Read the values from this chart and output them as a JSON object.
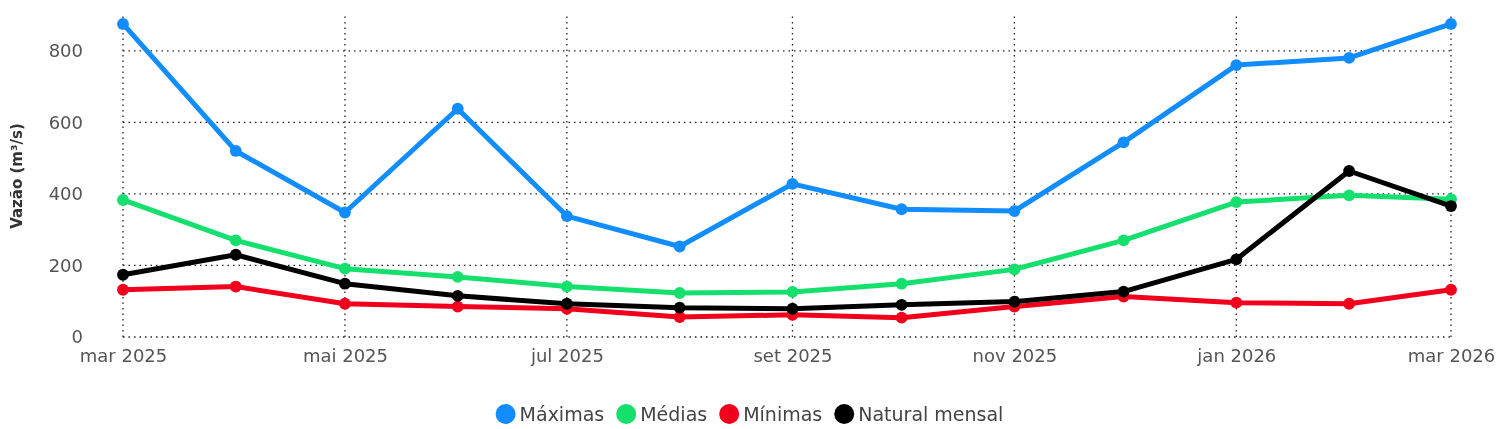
{
  "chart_data": {
    "type": "line",
    "ylabel": "Vazão (m³/s)",
    "x": [
      "2025-03",
      "2025-04",
      "2025-05",
      "2025-06",
      "2025-07",
      "2025-08",
      "2025-09",
      "2025-10",
      "2025-11",
      "2025-12",
      "2026-01",
      "2026-02",
      "2026-03"
    ],
    "xlim": [
      "2025-03",
      "2026-03"
    ],
    "xticks": [
      {
        "value": "2025-03",
        "label": "mar 2025"
      },
      {
        "value": "2025-05",
        "label": "mai 2025"
      },
      {
        "value": "2025-07",
        "label": "jul 2025"
      },
      {
        "value": "2025-09",
        "label": "set 2025"
      },
      {
        "value": "2025-11",
        "label": "nov 2025"
      },
      {
        "value": "2026-01",
        "label": "jan 2026"
      },
      {
        "value": "2026-03",
        "label": "mar 2026"
      }
    ],
    "ylim": [
      0,
      900
    ],
    "yticks": [
      0,
      200,
      400,
      600,
      800
    ],
    "grid": true,
    "legend": "bottom",
    "marker": "circle",
    "line_style": "solid",
    "series": [
      {
        "name": "Máximas",
        "color": "#118dff",
        "values": [
          875,
          520,
          348,
          638,
          338,
          253,
          428,
          357,
          352,
          544,
          760,
          780,
          875
        ]
      },
      {
        "name": "Médias",
        "color": "#15e06e",
        "values": [
          383,
          270,
          191,
          168,
          141,
          123,
          126,
          149,
          189,
          270,
          377,
          396,
          385
        ]
      },
      {
        "name": "Mínimas",
        "color": "#f0001c",
        "values": [
          132,
          141,
          93,
          85,
          79,
          56,
          62,
          54,
          85,
          113,
          96,
          93,
          132
        ]
      },
      {
        "name": "Natural mensal",
        "color": "#000000",
        "values": [
          174,
          230,
          149,
          115,
          93,
          82,
          79,
          90,
          99,
          127,
          217,
          464,
          366
        ]
      }
    ]
  }
}
